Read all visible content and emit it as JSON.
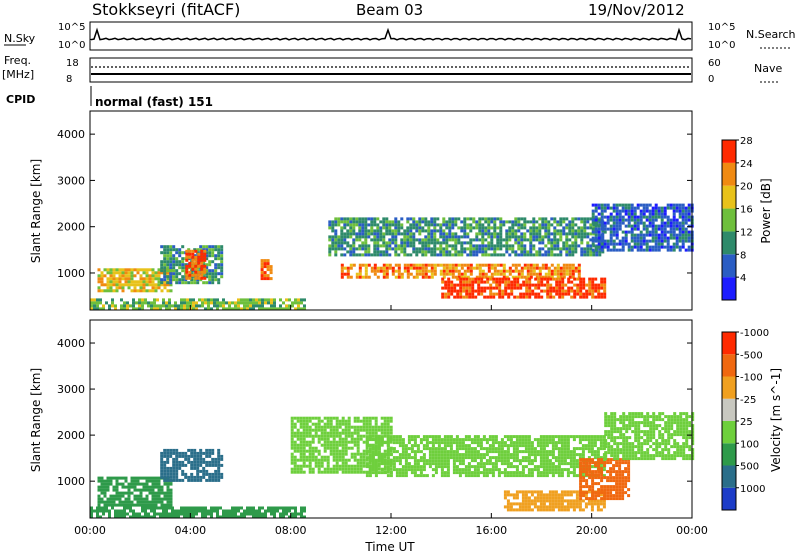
{
  "header": {
    "station": "Stokkseyri (fitACF)",
    "beam": "Beam 03",
    "date": "19/Nov/2012"
  },
  "noise_panel": {
    "left_label": "N.Sky",
    "left_top": "10^5",
    "left_bottom": "10^0",
    "right_top": "10^5",
    "right_bottom": "10^0",
    "right_label": "N.Search"
  },
  "freq_panel": {
    "left_label_1": "Freq.",
    "left_label_2": "[MHz]",
    "left_top": "18",
    "left_bottom": "8",
    "right_top": "60",
    "right_bottom": "0",
    "right_label": "Nave",
    "cpid_label": "CPID",
    "cpid_text": "normal (fast) 151"
  },
  "chart_data": [
    {
      "type": "heatmap",
      "name": "power",
      "ylabel": "Slant Range [km]",
      "ylim": [
        200,
        4500
      ],
      "yticks": [
        1000,
        2000,
        3000,
        4000
      ],
      "xlim": [
        0,
        24
      ],
      "colorbar": {
        "label": "Power [dB]",
        "ticks": [
          "4",
          "8",
          "12",
          "16",
          "20",
          "24",
          "28"
        ],
        "colors": [
          "#1c1cff",
          "#2a5dc4",
          "#2e8a6a",
          "#6ebf3c",
          "#e8c21a",
          "#f08a12",
          "#ff2a00"
        ]
      },
      "regions": [
        {
          "t0": 0.3,
          "t1": 3.2,
          "r0": 600,
          "r1": 1100,
          "v": 20
        },
        {
          "t0": 2.8,
          "t1": 5.2,
          "r0": 800,
          "r1": 1600,
          "v": 12
        },
        {
          "t0": 3.8,
          "t1": 4.6,
          "r0": 900,
          "r1": 1500,
          "v": 26
        },
        {
          "t0": 6.8,
          "t1": 7.2,
          "r0": 900,
          "r1": 1300,
          "v": 26
        },
        {
          "t0": 10.0,
          "t1": 19.5,
          "r0": 900,
          "r1": 1200,
          "v": 24
        },
        {
          "t0": 9.5,
          "t1": 20.5,
          "r0": 1400,
          "r1": 2200,
          "v": 12
        },
        {
          "t0": 14.0,
          "t1": 20.5,
          "r0": 500,
          "r1": 900,
          "v": 28
        },
        {
          "t0": 20.0,
          "t1": 24.0,
          "r0": 1500,
          "r1": 2500,
          "v": 8
        },
        {
          "t0": 0.0,
          "t1": 8.5,
          "r0": 250,
          "r1": 450,
          "v": 16
        }
      ]
    },
    {
      "type": "heatmap",
      "name": "velocity",
      "ylabel": "Slant Range [km]",
      "xlabel": "Time UT",
      "ylim": [
        200,
        4500
      ],
      "yticks": [
        1000,
        2000,
        3000,
        4000
      ],
      "xlim": [
        0,
        24
      ],
      "xticks": [
        "00:00",
        "04:00",
        "08:00",
        "12:00",
        "16:00",
        "20:00",
        "00:00"
      ],
      "colorbar": {
        "label": "Velocity [m s^-1]",
        "ticks": [
          "1000",
          "500",
          "100",
          "25",
          "-25",
          "-100",
          "-500",
          "-1000"
        ],
        "colors": [
          "#1c3cc8",
          "#2a6e8a",
          "#2e9a4a",
          "#6ecf3c",
          "#c8c8c0",
          "#f0a020",
          "#f06810",
          "#ff2a00"
        ]
      },
      "regions": [
        {
          "t0": 0.3,
          "t1": 3.2,
          "r0": 500,
          "r1": 1100,
          "v": 100
        },
        {
          "t0": 2.8,
          "t1": 5.2,
          "r0": 1000,
          "r1": 1700,
          "v": 500
        },
        {
          "t0": 8.0,
          "t1": 12.0,
          "r0": 1200,
          "r1": 2400,
          "v": 0
        },
        {
          "t0": 11.0,
          "t1": 20.5,
          "r0": 1100,
          "r1": 2000,
          "v": 0
        },
        {
          "t0": 16.5,
          "t1": 20.5,
          "r0": 400,
          "r1": 800,
          "v": -100
        },
        {
          "t0": 19.5,
          "t1": 21.5,
          "r0": 600,
          "r1": 1500,
          "v": -500
        },
        {
          "t0": 20.5,
          "t1": 24.0,
          "r0": 1500,
          "r1": 2500,
          "v": 0
        },
        {
          "t0": 0.0,
          "t1": 8.5,
          "r0": 250,
          "r1": 450,
          "v": 100
        }
      ]
    }
  ]
}
